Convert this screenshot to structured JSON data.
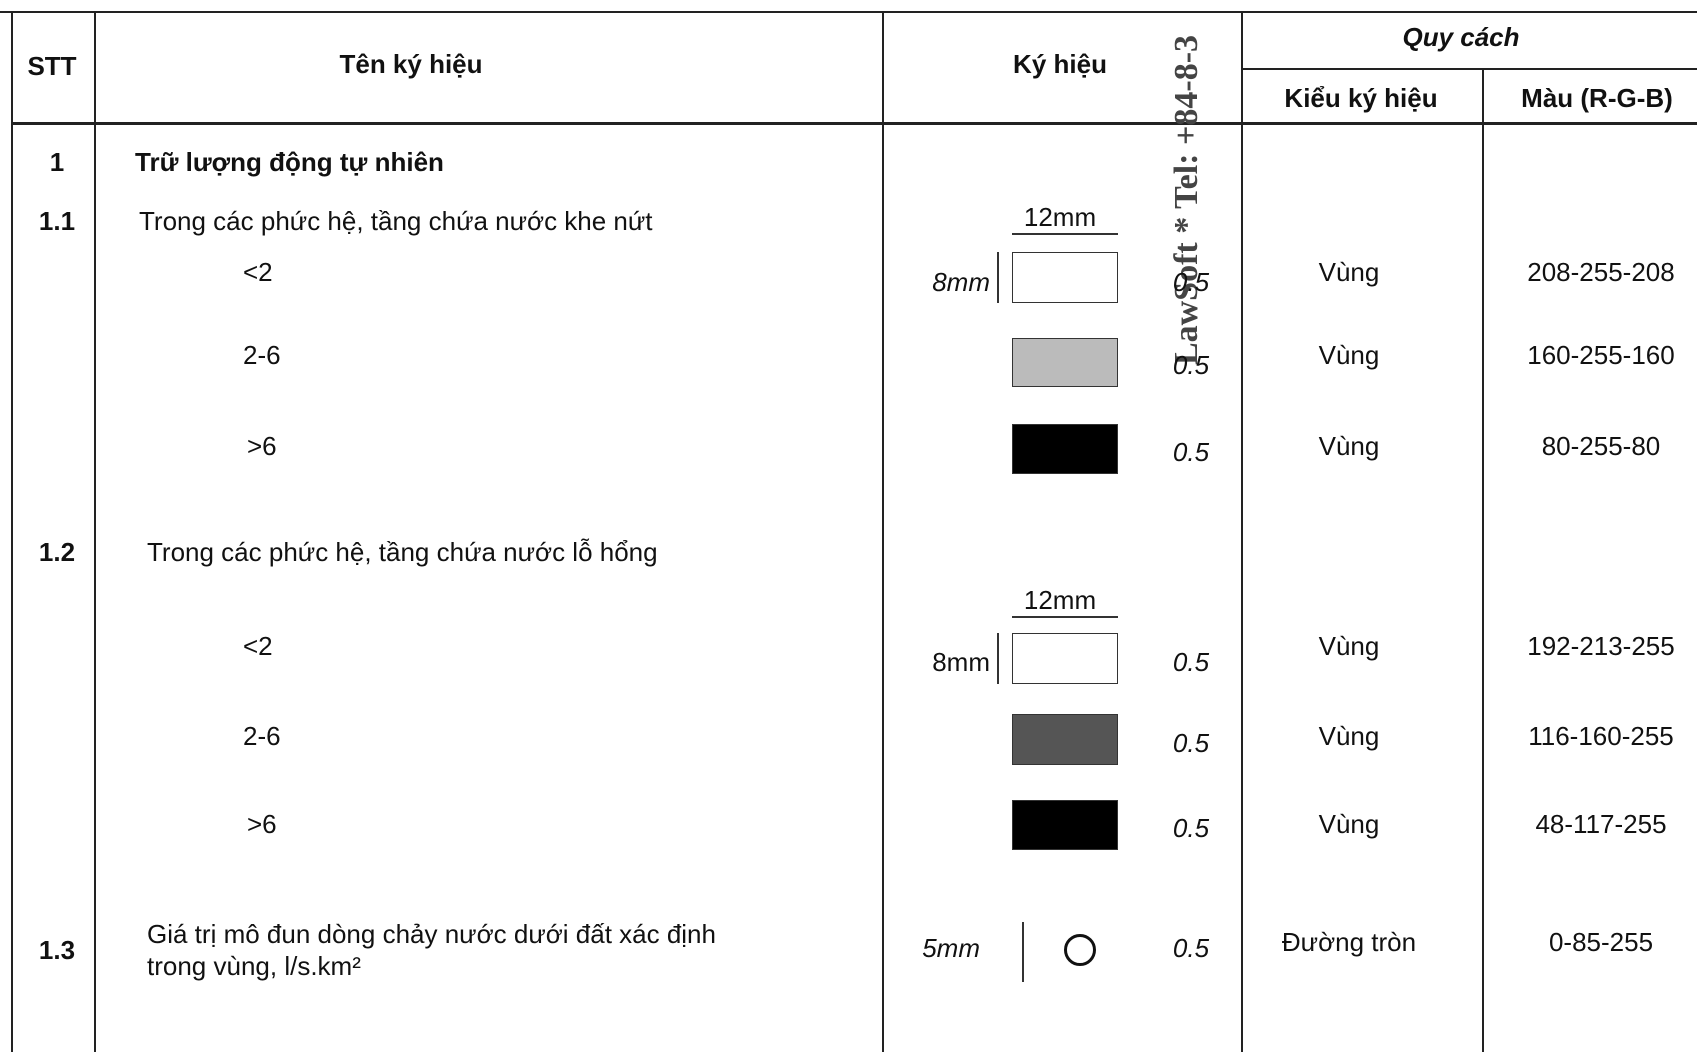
{
  "header": {
    "stt": "STT",
    "name": "Tên ký hiệu",
    "symbol": "Ký hiệu",
    "spec": "Quy cách",
    "style": "Kiểu ký hiệu",
    "color": "Màu (R-G-B)"
  },
  "watermark": "LawSoft * Tel: +84-8-3",
  "rows": [
    {
      "stt": "1",
      "name": "Trữ lượng động tự nhiên"
    },
    {
      "stt": "1.1",
      "name": "Trong các phức hệ, tầng chứa nước khe nứt"
    },
    {
      "name": "<2",
      "width_label": "12mm",
      "height_label": "8mm",
      "line": "0.5",
      "style": "Vùng",
      "color": "208-255-208"
    },
    {
      "name": "2-6",
      "line": "0.5",
      "style": "Vùng",
      "color": "160-255-160"
    },
    {
      "name": ">6",
      "line": "0.5",
      "style": "Vùng",
      "color": "80-255-80"
    },
    {
      "stt": "1.2",
      "name": "Trong các phức hệ, tầng chứa nước lỗ hổng"
    },
    {
      "name": "<2",
      "width_label": "12mm",
      "height_label": "8mm",
      "line": "0.5",
      "style": "Vùng",
      "color": "192-213-255"
    },
    {
      "name": "2-6",
      "line": "0.5",
      "style": "Vùng",
      "color": "116-160-255"
    },
    {
      "name": ">6",
      "line": "0.5",
      "style": "Vùng",
      "color": "48-117-255"
    },
    {
      "stt": "1.3",
      "name": [
        "Giá trị mô đun dòng chảy nước dưới đất xác định",
        "trong vùng, l/s.km²"
      ],
      "height_label": "5mm",
      "line": "0.5",
      "style": "Đường tròn",
      "color": "0-85-255"
    }
  ]
}
